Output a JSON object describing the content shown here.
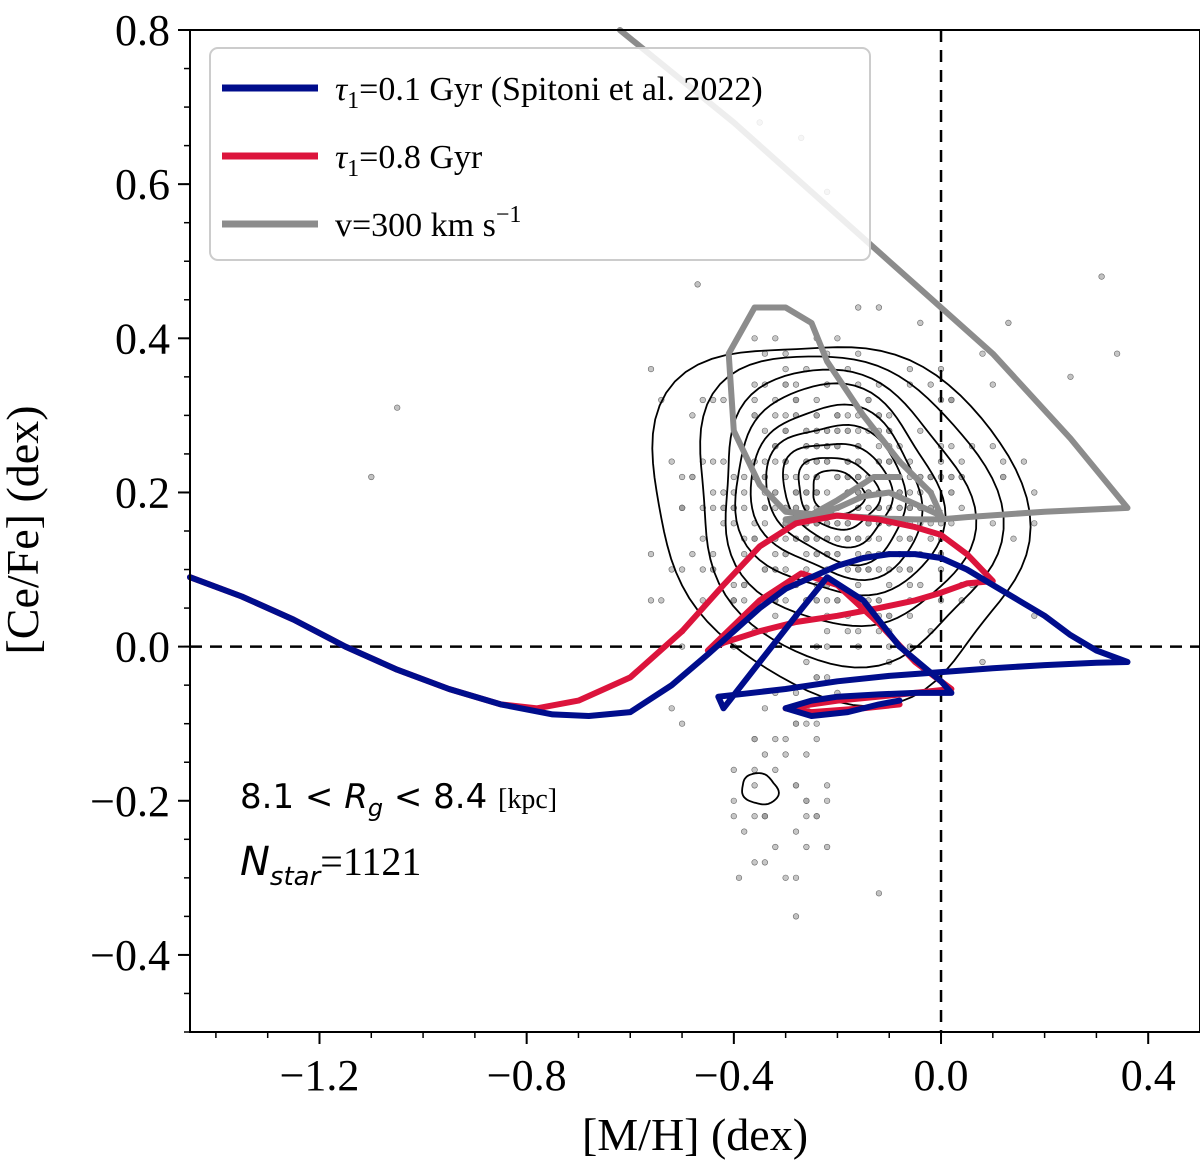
{
  "chart_data": {
    "type": "line",
    "xlabel": "[M/H] (dex)",
    "ylabel": "[Ce/Fe] (dex)",
    "xlim": [
      -1.45,
      0.5
    ],
    "ylim": [
      -0.5,
      0.8
    ],
    "xticks": [
      -1.2,
      -0.8,
      -0.4,
      0.0,
      0.4
    ],
    "xtick_labels": [
      "−1.2",
      "−0.8",
      "−0.4",
      "0.0",
      "0.4"
    ],
    "yticks": [
      -0.4,
      -0.2,
      0.0,
      0.2,
      0.4,
      0.6,
      0.8
    ],
    "ytick_labels": [
      "−0.4",
      "−0.2",
      "0.0",
      "0.2",
      "0.4",
      "0.6",
      "0.8"
    ],
    "reference_lines": {
      "x": 0.0,
      "y": 0.0,
      "style": "dashed"
    },
    "legend": {
      "position": "top-left",
      "entries": [
        {
          "symbol": "τ",
          "sub": "1",
          "text": "=0.1 Gyr (Spitoni et al. 2022)",
          "color": "#000d8c"
        },
        {
          "symbol": "τ",
          "sub": "1",
          "text": "=0.8 Gyr",
          "color": "#dc143c"
        },
        {
          "symbol": "",
          "sub": "",
          "text": "v=300 km s",
          "sup": "−1",
          "color": "#8c8c8c"
        }
      ]
    },
    "annotations": {
      "range_prefix": "8.1 < ",
      "range_var": "R",
      "range_sub": "g",
      "range_suffix": " < 8.4 ",
      "range_unit": "[kpc]",
      "nstar_var": "N",
      "nstar_sub": "star",
      "nstar_value": "=1121"
    },
    "series": [
      {
        "name": "τ1=0.1 Gyr (Spitoni et al. 2022)",
        "color": "#000d8c",
        "x": [
          -1.45,
          -1.35,
          -1.25,
          -1.15,
          -1.05,
          -0.95,
          -0.85,
          -0.75,
          -0.68,
          -0.6,
          -0.52,
          -0.45,
          -0.4,
          -0.35,
          -0.3,
          -0.25,
          -0.2,
          -0.15,
          -0.1,
          -0.05,
          0.0,
          0.05,
          0.1,
          0.15,
          0.2,
          0.25,
          0.3,
          0.36,
          0.3,
          0.2,
          0.1,
          0.0,
          -0.1,
          -0.2,
          -0.3,
          -0.43,
          -0.42,
          -0.35,
          -0.28,
          -0.22,
          -0.15,
          -0.08,
          0.0,
          0.02,
          -0.05,
          -0.12,
          -0.2,
          -0.25,
          -0.3,
          -0.25,
          -0.18,
          -0.12,
          -0.08
        ],
        "y": [
          0.09,
          0.065,
          0.035,
          0.0,
          -0.03,
          -0.055,
          -0.075,
          -0.088,
          -0.09,
          -0.085,
          -0.05,
          -0.01,
          0.02,
          0.05,
          0.075,
          0.09,
          0.105,
          0.115,
          0.12,
          0.12,
          0.115,
          0.1,
          0.08,
          0.06,
          0.04,
          0.015,
          -0.005,
          -0.02,
          -0.021,
          -0.024,
          -0.028,
          -0.033,
          -0.038,
          -0.045,
          -0.055,
          -0.065,
          -0.08,
          -0.02,
          0.04,
          0.09,
          0.06,
          0.0,
          -0.045,
          -0.06,
          -0.06,
          -0.062,
          -0.065,
          -0.07,
          -0.08,
          -0.09,
          -0.085,
          -0.075,
          -0.07
        ]
      },
      {
        "name": "τ1=0.8 Gyr",
        "color": "#dc143c",
        "x": [
          -1.45,
          -1.35,
          -1.25,
          -1.15,
          -1.05,
          -0.95,
          -0.85,
          -0.78,
          -0.7,
          -0.6,
          -0.5,
          -0.42,
          -0.35,
          -0.28,
          -0.2,
          -0.12,
          -0.05,
          0.0,
          0.05,
          0.1,
          0.05,
          0.0,
          -0.05,
          -0.12,
          -0.2,
          -0.28,
          -0.35,
          -0.42,
          -0.45,
          -0.35,
          -0.27,
          -0.2,
          -0.12,
          -0.05,
          0.0,
          0.02,
          -0.05,
          -0.12,
          -0.2,
          -0.25,
          -0.3,
          -0.25,
          -0.15,
          -0.08
        ],
        "y": [
          0.09,
          0.065,
          0.035,
          0.0,
          -0.03,
          -0.055,
          -0.075,
          -0.08,
          -0.07,
          -0.04,
          0.02,
          0.08,
          0.13,
          0.16,
          0.17,
          0.165,
          0.155,
          0.145,
          0.12,
          0.085,
          0.082,
          0.07,
          0.06,
          0.05,
          0.04,
          0.032,
          0.02,
          0.005,
          -0.005,
          0.06,
          0.095,
          0.08,
          0.03,
          -0.02,
          -0.045,
          -0.055,
          -0.06,
          -0.065,
          -0.07,
          -0.075,
          -0.08,
          -0.085,
          -0.08,
          -0.075
        ]
      },
      {
        "name": "v=300 km s−1",
        "color": "#8c8c8c",
        "x": [
          -0.62,
          -0.4,
          -0.2,
          -0.05,
          0.1,
          0.25,
          0.36,
          0.2,
          0.05,
          0.0,
          -0.05,
          -0.1,
          -0.15,
          -0.2,
          -0.25,
          -0.3,
          -0.35,
          -0.4,
          -0.41,
          -0.36,
          -0.3,
          -0.25,
          -0.22,
          -0.15,
          -0.08,
          -0.02,
          0.0,
          -0.05,
          -0.1,
          -0.15,
          -0.2,
          -0.25,
          -0.3,
          -0.28,
          -0.2,
          -0.13,
          -0.08
        ],
        "y": [
          0.8,
          0.68,
          0.56,
          0.47,
          0.38,
          0.27,
          0.18,
          0.175,
          0.168,
          0.165,
          0.165,
          0.166,
          0.168,
          0.17,
          0.172,
          0.175,
          0.21,
          0.28,
          0.38,
          0.44,
          0.44,
          0.42,
          0.37,
          0.3,
          0.24,
          0.2,
          0.17,
          0.185,
          0.2,
          0.195,
          0.18,
          0.17,
          0.165,
          0.16,
          0.19,
          0.22,
          0.22
        ]
      }
    ],
    "contours": [
      {
        "cx": -0.2,
        "cy": 0.17,
        "rx": 0.36,
        "ry": 0.23,
        "note": "outer (blob with tail)"
      },
      {
        "cx": -0.19,
        "cy": 0.18,
        "rx": 0.29,
        "ry": 0.2
      },
      {
        "cx": -0.19,
        "cy": 0.19,
        "rx": 0.24,
        "ry": 0.165
      },
      {
        "cx": -0.2,
        "cy": 0.2,
        "rx": 0.2,
        "ry": 0.135
      },
      {
        "cx": -0.2,
        "cy": 0.2,
        "rx": 0.165,
        "ry": 0.11
      },
      {
        "cx": -0.2,
        "cy": 0.2,
        "rx": 0.135,
        "ry": 0.088
      },
      {
        "cx": -0.2,
        "cy": 0.2,
        "rx": 0.105,
        "ry": 0.066
      },
      {
        "cx": -0.2,
        "cy": 0.2,
        "rx": 0.078,
        "ry": 0.046
      },
      {
        "cx": -0.2,
        "cy": 0.2,
        "rx": 0.05,
        "ry": 0.028
      },
      {
        "cx": -0.35,
        "cy": -0.185,
        "rx": 0.035,
        "ry": 0.02
      }
    ],
    "scatter_stars": 1121
  }
}
